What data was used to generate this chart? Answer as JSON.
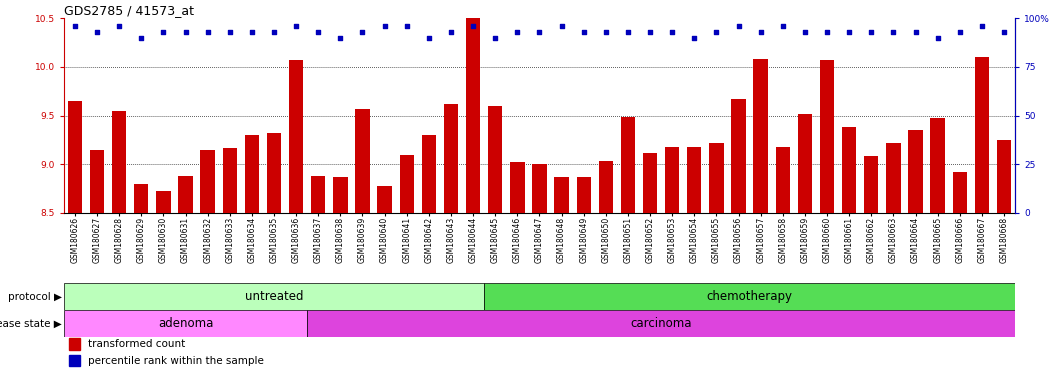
{
  "title": "GDS2785 / 41573_at",
  "samples": [
    "GSM180626",
    "GSM180627",
    "GSM180628",
    "GSM180629",
    "GSM180630",
    "GSM180631",
    "GSM180632",
    "GSM180633",
    "GSM180634",
    "GSM180635",
    "GSM180636",
    "GSM180637",
    "GSM180638",
    "GSM180639",
    "GSM180640",
    "GSM180641",
    "GSM180642",
    "GSM180643",
    "GSM180644",
    "GSM180645",
    "GSM180646",
    "GSM180647",
    "GSM180648",
    "GSM180649",
    "GSM180650",
    "GSM180651",
    "GSM180652",
    "GSM180653",
    "GSM180654",
    "GSM180655",
    "GSM180656",
    "GSM180657",
    "GSM180658",
    "GSM180659",
    "GSM180660",
    "GSM180661",
    "GSM180662",
    "GSM180663",
    "GSM180664",
    "GSM180665",
    "GSM180666",
    "GSM180667",
    "GSM180668"
  ],
  "bar_values": [
    9.65,
    9.15,
    9.55,
    8.8,
    8.73,
    8.88,
    9.15,
    9.17,
    9.3,
    9.32,
    10.07,
    8.88,
    8.87,
    9.57,
    8.78,
    9.1,
    9.3,
    9.62,
    10.55,
    9.6,
    9.02,
    9.0,
    8.87,
    8.87,
    9.03,
    9.48,
    9.12,
    9.18,
    9.18,
    9.22,
    9.67,
    10.08,
    9.18,
    9.52,
    10.07,
    9.38,
    9.08,
    9.22,
    9.35,
    9.47,
    8.92,
    10.1,
    9.25
  ],
  "percentile_values": [
    96,
    93,
    96,
    90,
    93,
    93,
    93,
    93,
    93,
    93,
    96,
    93,
    90,
    93,
    96,
    96,
    90,
    93,
    96,
    90,
    93,
    93,
    96,
    93,
    93,
    93,
    93,
    93,
    90,
    93,
    96,
    93,
    96,
    93,
    93,
    93,
    93,
    93,
    93,
    90,
    93,
    96,
    93
  ],
  "ylim_left": [
    8.5,
    10.5
  ],
  "yticks_left": [
    8.5,
    9.0,
    9.5,
    10.0,
    10.5
  ],
  "ylim_right": [
    0,
    100
  ],
  "yticks_right": [
    0,
    25,
    50,
    75,
    100
  ],
  "bar_color": "#cc0000",
  "dot_color": "#0000bb",
  "bar_bottom": 8.5,
  "protocol_groups": [
    {
      "label": "untreated",
      "start": 0,
      "end": 19,
      "color": "#bbffbb"
    },
    {
      "label": "chemotherapy",
      "start": 19,
      "end": 43,
      "color": "#55dd55"
    }
  ],
  "disease_groups": [
    {
      "label": "adenoma",
      "start": 0,
      "end": 11,
      "color": "#ff88ff"
    },
    {
      "label": "carcinoma",
      "start": 11,
      "end": 43,
      "color": "#dd44dd"
    }
  ],
  "background_color": "#ffffff",
  "title_fontsize": 9,
  "tick_fontsize": 6.5,
  "annot_fontsize": 8.5,
  "legend_fontsize": 7.5
}
